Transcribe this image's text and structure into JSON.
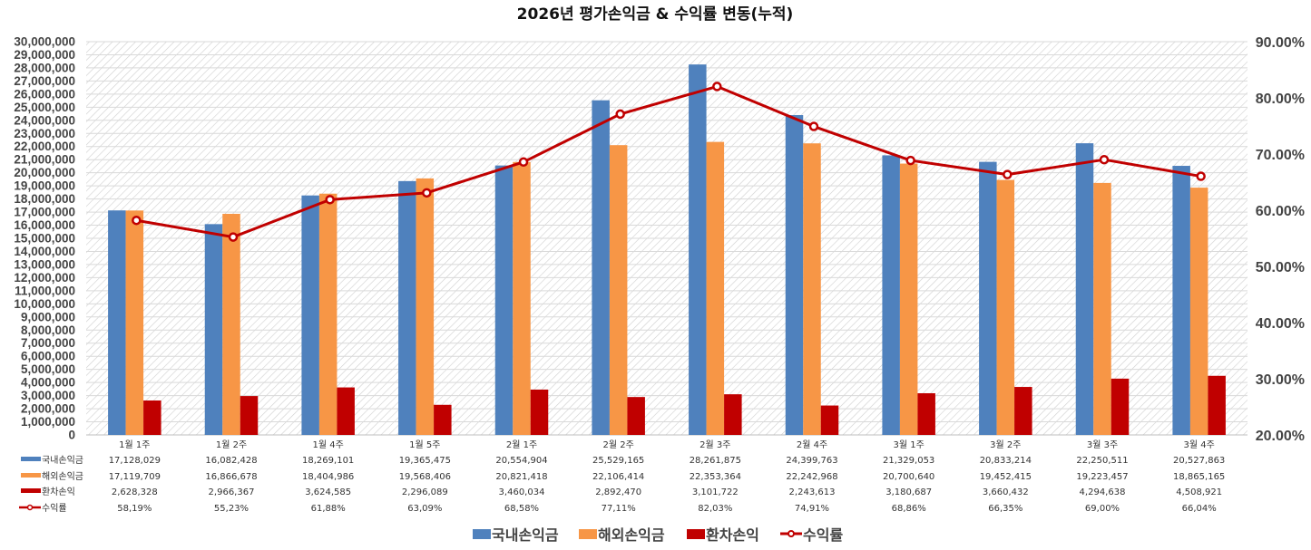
{
  "chart_data": {
    "type": "bar",
    "combo": "bar+line",
    "title": "2026년 평가손익금 & 수익률 변동(누적)",
    "xlabel": "",
    "ylabel": "",
    "y2label": "",
    "categories": [
      "1월 1주",
      "1월 2주",
      "1월 4주",
      "1월 5주",
      "2월 1주",
      "2월 2주",
      "2월 3주",
      "2월 4주",
      "3월 1주",
      "3월 2주",
      "3월 3주",
      "3월 4주"
    ],
    "series": [
      {
        "name": "국내손익금",
        "kind": "bar",
        "axis": "left",
        "color": "#4f81bd",
        "values": [
          17128029,
          16082428,
          18269101,
          19365475,
          20554904,
          25529165,
          28261875,
          24399763,
          21329053,
          20833214,
          22250511,
          20527863
        ],
        "labels": [
          "17,128,029",
          "16,082,428",
          "18,269,101",
          "19,365,475",
          "20,554,904",
          "25,529,165",
          "28,261,875",
          "24,399,763",
          "21,329,053",
          "20,833,214",
          "22,250,511",
          "20,527,863"
        ]
      },
      {
        "name": "해외손익금",
        "kind": "bar",
        "axis": "left",
        "color": "#f79646",
        "values": [
          17119709,
          16866678,
          18404986,
          19568406,
          20821418,
          22106414,
          22353364,
          22242968,
          20700640,
          19452415,
          19223457,
          18865165
        ],
        "labels": [
          "17,119,709",
          "16,866,678",
          "18,404,986",
          "19,568,406",
          "20,821,418",
          "22,106,414",
          "22,353,364",
          "22,242,968",
          "20,700,640",
          "19,452,415",
          "19,223,457",
          "18,865,165"
        ]
      },
      {
        "name": "환차손익",
        "kind": "bar",
        "axis": "left",
        "color": "#c00000",
        "values": [
          2628328,
          2966367,
          3624585,
          2296089,
          3460034,
          2892470,
          3101722,
          2243613,
          3180687,
          3660432,
          4294638,
          4508921
        ],
        "labels": [
          "2,628,328",
          "2,966,367",
          "3,624,585",
          "2,296,089",
          "3,460,034",
          "2,892,470",
          "3,101,722",
          "2,243,613",
          "3,180,687",
          "3,660,432",
          "4,294,638",
          "4,508,921"
        ]
      },
      {
        "name": "수익률",
        "kind": "line",
        "axis": "right",
        "color": "#c00000",
        "values": [
          58.19,
          55.23,
          61.88,
          63.09,
          68.58,
          77.11,
          82.03,
          74.91,
          68.86,
          66.35,
          69.0,
          66.04
        ],
        "labels": [
          "58,19%",
          "55,23%",
          "61,88%",
          "63,09%",
          "68,58%",
          "77,11%",
          "82,03%",
          "74,91%",
          "68,86%",
          "66,35%",
          "69,00%",
          "66,04%"
        ]
      }
    ],
    "ylim": [
      0,
      30000000
    ],
    "y_ticks": [
      "0",
      "1,000,000",
      "2,000,000",
      "3,000,000",
      "4,000,000",
      "5,000,000",
      "6,000,000",
      "7,000,000",
      "8,000,000",
      "9,000,000",
      "10,000,000",
      "11,000,000",
      "12,000,000",
      "13,000,000",
      "14,000,000",
      "15,000,000",
      "16,000,000",
      "17,000,000",
      "18,000,000",
      "19,000,000",
      "20,000,000",
      "21,000,000",
      "22,000,000",
      "23,000,000",
      "24,000,000",
      "25,000,000",
      "26,000,000",
      "27,000,000",
      "28,000,000",
      "29,000,000",
      "30,000,000"
    ],
    "y2lim": [
      20,
      90
    ],
    "y2_ticks": [
      "20.00%",
      "30.00%",
      "40.00%",
      "50.00%",
      "60.00%",
      "70.00%",
      "80.00%",
      "90.00%"
    ],
    "grid": true,
    "data_table": true,
    "legend_position": "bottom",
    "legend": [
      "국내손익금",
      "해외손익금",
      "환차손익",
      "수익률"
    ]
  }
}
